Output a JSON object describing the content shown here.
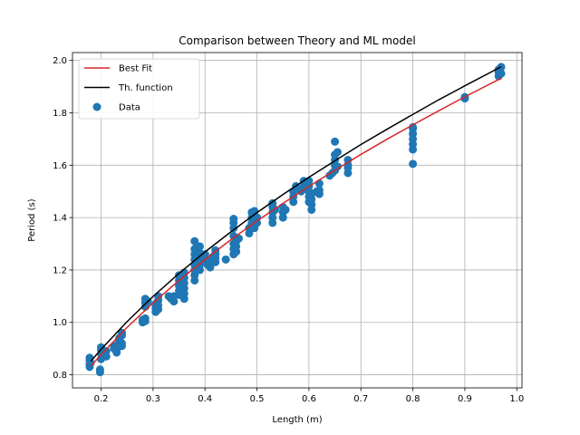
{
  "chart_data": {
    "type": "scatter",
    "title": "Comparison between Theory and ML model",
    "xlabel": "Length (m)",
    "ylabel": "Period (s)",
    "xlim": [
      0.145,
      1.01
    ],
    "ylim": [
      0.75,
      2.03
    ],
    "xticks": [
      0.2,
      0.3,
      0.4,
      0.5,
      0.6,
      0.7,
      0.8,
      0.9,
      1.0
    ],
    "xtick_labels": [
      "0.2",
      "0.3",
      "0.4",
      "0.5",
      "0.6",
      "0.7",
      "0.8",
      "0.9",
      "1.0"
    ],
    "yticks": [
      0.8,
      1.0,
      1.2,
      1.4,
      1.6,
      1.8,
      2.0
    ],
    "ytick_labels": [
      "0.8",
      "1.0",
      "1.2",
      "1.4",
      "1.6",
      "1.8",
      "2.0"
    ],
    "grid": true,
    "legend_position": "top-left",
    "legend": [
      {
        "label": "Best Fit",
        "kind": "line",
        "color": "#d62728"
      },
      {
        "label": "Th. function",
        "kind": "line",
        "color": "#000000"
      },
      {
        "label": "Data",
        "kind": "marker",
        "color": "#1f77b4"
      }
    ],
    "series": [
      {
        "label": "Best Fit",
        "kind": "line",
        "color": "#d62728",
        "x": [
          0.18,
          0.2,
          0.25,
          0.3,
          0.35,
          0.4,
          0.45,
          0.5,
          0.55,
          0.6,
          0.65,
          0.7,
          0.75,
          0.8,
          0.85,
          0.9,
          0.97
        ],
        "y": [
          0.832,
          0.877,
          0.981,
          1.074,
          1.16,
          1.24,
          1.316,
          1.387,
          1.454,
          1.519,
          1.581,
          1.641,
          1.699,
          1.754,
          1.808,
          1.861,
          1.932
        ]
      },
      {
        "label": "Th. function",
        "kind": "line",
        "color": "#000000",
        "x": [
          0.18,
          0.2,
          0.25,
          0.3,
          0.35,
          0.4,
          0.45,
          0.5,
          0.55,
          0.6,
          0.65,
          0.7,
          0.75,
          0.8,
          0.85,
          0.9,
          0.97
        ],
        "y": [
          0.851,
          0.897,
          1.003,
          1.099,
          1.187,
          1.269,
          1.346,
          1.419,
          1.488,
          1.554,
          1.617,
          1.679,
          1.737,
          1.794,
          1.85,
          1.903,
          1.976
        ]
      },
      {
        "label": "Data",
        "kind": "scatter",
        "color": "#1f77b4",
        "points": [
          [
            0.178,
            0.83
          ],
          [
            0.178,
            0.84
          ],
          [
            0.178,
            0.855
          ],
          [
            0.178,
            0.865
          ],
          [
            0.18,
            0.845
          ],
          [
            0.198,
            0.82
          ],
          [
            0.198,
            0.81
          ],
          [
            0.2,
            0.86
          ],
          [
            0.2,
            0.895
          ],
          [
            0.2,
            0.905
          ],
          [
            0.2,
            0.88
          ],
          [
            0.21,
            0.87
          ],
          [
            0.21,
            0.89
          ],
          [
            0.225,
            0.9
          ],
          [
            0.225,
            0.91
          ],
          [
            0.23,
            0.885
          ],
          [
            0.23,
            0.895
          ],
          [
            0.235,
            0.93
          ],
          [
            0.235,
            0.94
          ],
          [
            0.24,
            0.92
          ],
          [
            0.24,
            0.95
          ],
          [
            0.24,
            0.96
          ],
          [
            0.24,
            0.91
          ],
          [
            0.28,
            1.0
          ],
          [
            0.28,
            1.01
          ],
          [
            0.285,
            1.005
          ],
          [
            0.285,
            1.015
          ],
          [
            0.285,
            1.06
          ],
          [
            0.285,
            1.075
          ],
          [
            0.285,
            1.09
          ],
          [
            0.29,
            1.08
          ],
          [
            0.305,
            1.04
          ],
          [
            0.305,
            1.055
          ],
          [
            0.305,
            1.07
          ],
          [
            0.31,
            1.085
          ],
          [
            0.31,
            1.1
          ],
          [
            0.31,
            1.065
          ],
          [
            0.31,
            1.05
          ],
          [
            0.33,
            1.1
          ],
          [
            0.335,
            1.09
          ],
          [
            0.34,
            1.08
          ],
          [
            0.34,
            1.1
          ],
          [
            0.35,
            1.12
          ],
          [
            0.35,
            1.14
          ],
          [
            0.35,
            1.16
          ],
          [
            0.35,
            1.18
          ],
          [
            0.35,
            1.105
          ],
          [
            0.36,
            1.09
          ],
          [
            0.36,
            1.11
          ],
          [
            0.36,
            1.13
          ],
          [
            0.36,
            1.15
          ],
          [
            0.36,
            1.17
          ],
          [
            0.36,
            1.19
          ],
          [
            0.38,
            1.16
          ],
          [
            0.38,
            1.18
          ],
          [
            0.38,
            1.2
          ],
          [
            0.38,
            1.22
          ],
          [
            0.38,
            1.24
          ],
          [
            0.38,
            1.26
          ],
          [
            0.38,
            1.28
          ],
          [
            0.38,
            1.31
          ],
          [
            0.39,
            1.2
          ],
          [
            0.39,
            1.22
          ],
          [
            0.39,
            1.24
          ],
          [
            0.39,
            1.265
          ],
          [
            0.39,
            1.29
          ],
          [
            0.4,
            1.24
          ],
          [
            0.4,
            1.26
          ],
          [
            0.405,
            1.22
          ],
          [
            0.41,
            1.21
          ],
          [
            0.41,
            1.23
          ],
          [
            0.415,
            1.25
          ],
          [
            0.42,
            1.23
          ],
          [
            0.42,
            1.245
          ],
          [
            0.42,
            1.26
          ],
          [
            0.42,
            1.275
          ],
          [
            0.44,
            1.24
          ],
          [
            0.455,
            1.26
          ],
          [
            0.455,
            1.28
          ],
          [
            0.455,
            1.3
          ],
          [
            0.455,
            1.33
          ],
          [
            0.455,
            1.36
          ],
          [
            0.455,
            1.38
          ],
          [
            0.455,
            1.395
          ],
          [
            0.46,
            1.27
          ],
          [
            0.46,
            1.29
          ],
          [
            0.46,
            1.31
          ],
          [
            0.465,
            1.32
          ],
          [
            0.485,
            1.34
          ],
          [
            0.485,
            1.36
          ],
          [
            0.49,
            1.37
          ],
          [
            0.49,
            1.38
          ],
          [
            0.49,
            1.4
          ],
          [
            0.49,
            1.42
          ],
          [
            0.495,
            1.36
          ],
          [
            0.495,
            1.39
          ],
          [
            0.495,
            1.41
          ],
          [
            0.495,
            1.425
          ],
          [
            0.5,
            1.38
          ],
          [
            0.5,
            1.4
          ],
          [
            0.53,
            1.38
          ],
          [
            0.53,
            1.4
          ],
          [
            0.53,
            1.42
          ],
          [
            0.53,
            1.44
          ],
          [
            0.53,
            1.455
          ],
          [
            0.535,
            1.43
          ],
          [
            0.55,
            1.4
          ],
          [
            0.55,
            1.42
          ],
          [
            0.55,
            1.44
          ],
          [
            0.555,
            1.43
          ],
          [
            0.57,
            1.46
          ],
          [
            0.57,
            1.48
          ],
          [
            0.57,
            1.5
          ],
          [
            0.575,
            1.52
          ],
          [
            0.585,
            1.5
          ],
          [
            0.59,
            1.52
          ],
          [
            0.59,
            1.54
          ],
          [
            0.595,
            1.51
          ],
          [
            0.6,
            1.46
          ],
          [
            0.6,
            1.48
          ],
          [
            0.6,
            1.5
          ],
          [
            0.6,
            1.52
          ],
          [
            0.6,
            1.54
          ],
          [
            0.605,
            1.43
          ],
          [
            0.605,
            1.45
          ],
          [
            0.605,
            1.47
          ],
          [
            0.605,
            1.49
          ],
          [
            0.615,
            1.5
          ],
          [
            0.62,
            1.49
          ],
          [
            0.62,
            1.505
          ],
          [
            0.62,
            1.53
          ],
          [
            0.64,
            1.56
          ],
          [
            0.645,
            1.57
          ],
          [
            0.65,
            1.58
          ],
          [
            0.65,
            1.6
          ],
          [
            0.65,
            1.62
          ],
          [
            0.65,
            1.64
          ],
          [
            0.65,
            1.69
          ],
          [
            0.655,
            1.65
          ],
          [
            0.655,
            1.595
          ],
          [
            0.675,
            1.57
          ],
          [
            0.675,
            1.59
          ],
          [
            0.675,
            1.6
          ],
          [
            0.675,
            1.62
          ],
          [
            0.8,
            1.605
          ],
          [
            0.8,
            1.66
          ],
          [
            0.8,
            1.68
          ],
          [
            0.8,
            1.7
          ],
          [
            0.8,
            1.72
          ],
          [
            0.8,
            1.74
          ],
          [
            0.8,
            1.745
          ],
          [
            0.9,
            1.855
          ],
          [
            0.9,
            1.86
          ],
          [
            0.965,
            1.94
          ],
          [
            0.965,
            1.955
          ],
          [
            0.965,
            1.965
          ],
          [
            0.97,
            1.975
          ],
          [
            0.97,
            1.95
          ]
        ]
      }
    ]
  }
}
